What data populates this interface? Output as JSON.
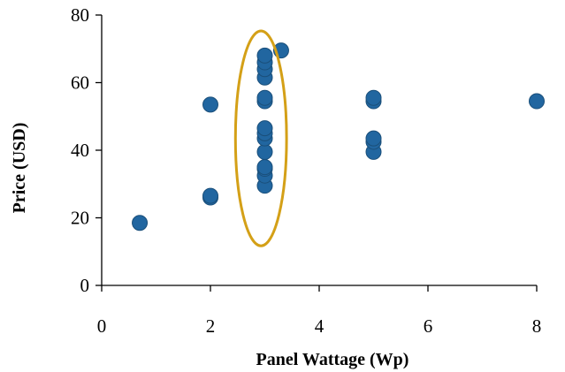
{
  "chart_data": {
    "type": "scatter",
    "xlabel": "Panel Wattage (Wp)",
    "ylabel": "Price (USD)",
    "xlim": [
      0,
      8
    ],
    "ylim": [
      0,
      80
    ],
    "x_ticks": [
      0,
      2,
      4,
      6,
      8
    ],
    "y_ticks": [
      0,
      20,
      40,
      60,
      80
    ],
    "x_tick_labels": [
      "0",
      "2",
      "4",
      "6",
      "8"
    ],
    "y_tick_labels": [
      "0",
      "20",
      "40",
      "60",
      "80"
    ],
    "grid": false,
    "legend": "none",
    "series": [
      {
        "color": "#2166a0",
        "points": [
          {
            "x": 0.7,
            "y": 18.5
          },
          {
            "x": 2.0,
            "y": 26.0
          },
          {
            "x": 2.0,
            "y": 26.5
          },
          {
            "x": 2.0,
            "y": 53.5
          },
          {
            "x": 3.0,
            "y": 29.5
          },
          {
            "x": 3.0,
            "y": 32.5
          },
          {
            "x": 3.0,
            "y": 34.5
          },
          {
            "x": 3.0,
            "y": 35.0
          },
          {
            "x": 3.0,
            "y": 39.5
          },
          {
            "x": 3.0,
            "y": 43.5
          },
          {
            "x": 3.0,
            "y": 45.0
          },
          {
            "x": 3.0,
            "y": 46.5
          },
          {
            "x": 3.0,
            "y": 54.5
          },
          {
            "x": 3.0,
            "y": 55.5
          },
          {
            "x": 3.0,
            "y": 61.5
          },
          {
            "x": 3.0,
            "y": 64.0
          },
          {
            "x": 3.0,
            "y": 66.0
          },
          {
            "x": 3.0,
            "y": 68.0
          },
          {
            "x": 3.3,
            "y": 69.5
          },
          {
            "x": 5.0,
            "y": 39.5
          },
          {
            "x": 5.0,
            "y": 42.5
          },
          {
            "x": 5.0,
            "y": 43.5
          },
          {
            "x": 5.0,
            "y": 54.5
          },
          {
            "x": 5.0,
            "y": 55.5
          },
          {
            "x": 8.0,
            "y": 54.5
          }
        ]
      }
    ],
    "highlight_ellipse": {
      "center_x": 2.93,
      "center_y": 43.5,
      "radius_x": 0.47,
      "radius_y": 31.8,
      "color": "#d4a017"
    }
  }
}
